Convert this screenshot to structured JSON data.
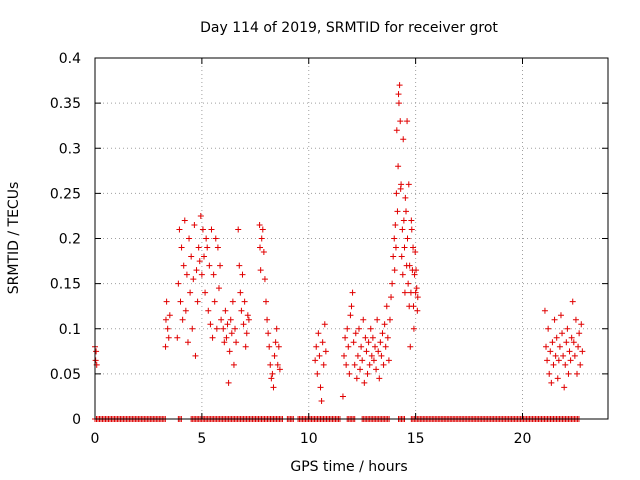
{
  "chart_data": {
    "type": "scatter",
    "title": "Day 114 of 2019, SRMTID for receiver grot",
    "xlabel": "GPS time / hours",
    "ylabel": "SRMTID / TECUs",
    "xlim": [
      0,
      24
    ],
    "ylim": [
      0,
      0.4
    ],
    "xticks": [
      0,
      5,
      10,
      15,
      20
    ],
    "xtick_labels": [
      "0",
      "5",
      "10",
      "15",
      "20"
    ],
    "yticks": [
      0,
      0.05,
      0.1,
      0.15,
      0.2,
      0.25,
      0.3,
      0.35,
      0.4
    ],
    "ytick_labels": [
      "0",
      "0.05",
      "0.1",
      "0.15",
      "0.2",
      "0.25",
      "0.3",
      "0.35",
      "0.4"
    ],
    "grid": true,
    "marker": "+",
    "color": "#e00000",
    "series": [
      {
        "points": [
          [
            0.0,
            0.08
          ],
          [
            0.03,
            0.065
          ],
          [
            0.05,
            0.075
          ],
          [
            0.08,
            0.06
          ],
          [
            3.3,
            0.08
          ],
          [
            3.32,
            0.11
          ],
          [
            3.35,
            0.13
          ],
          [
            3.4,
            0.1
          ],
          [
            3.45,
            0.09
          ],
          [
            3.5,
            0.115
          ],
          [
            3.85,
            0.09
          ],
          [
            3.9,
            0.15
          ],
          [
            3.95,
            0.21
          ],
          [
            4.0,
            0.13
          ],
          [
            4.05,
            0.19
          ],
          [
            4.1,
            0.11
          ],
          [
            4.15,
            0.17
          ],
          [
            4.2,
            0.22
          ],
          [
            4.25,
            0.12
          ],
          [
            4.3,
            0.16
          ],
          [
            4.35,
            0.085
          ],
          [
            4.4,
            0.2
          ],
          [
            4.45,
            0.14
          ],
          [
            4.5,
            0.18
          ],
          [
            4.55,
            0.1
          ],
          [
            4.6,
            0.155
          ],
          [
            4.65,
            0.215
          ],
          [
            4.7,
            0.07
          ],
          [
            4.75,
            0.165
          ],
          [
            4.8,
            0.13
          ],
          [
            4.85,
            0.19
          ],
          [
            4.9,
            0.175
          ],
          [
            4.95,
            0.225
          ],
          [
            5.0,
            0.16
          ],
          [
            5.05,
            0.21
          ],
          [
            5.1,
            0.18
          ],
          [
            5.15,
            0.14
          ],
          [
            5.2,
            0.2
          ],
          [
            5.25,
            0.19
          ],
          [
            5.3,
            0.12
          ],
          [
            5.35,
            0.17
          ],
          [
            5.4,
            0.105
          ],
          [
            5.45,
            0.21
          ],
          [
            5.5,
            0.09
          ],
          [
            5.55,
            0.16
          ],
          [
            5.6,
            0.13
          ],
          [
            5.65,
            0.2
          ],
          [
            5.7,
            0.1
          ],
          [
            5.75,
            0.19
          ],
          [
            5.8,
            0.145
          ],
          [
            5.85,
            0.17
          ],
          [
            5.9,
            0.11
          ],
          [
            6.0,
            0.1
          ],
          [
            6.05,
            0.085
          ],
          [
            6.1,
            0.12
          ],
          [
            6.15,
            0.09
          ],
          [
            6.2,
            0.105
          ],
          [
            6.25,
            0.04
          ],
          [
            6.3,
            0.075
          ],
          [
            6.35,
            0.11
          ],
          [
            6.4,
            0.095
          ],
          [
            6.45,
            0.13
          ],
          [
            6.5,
            0.06
          ],
          [
            6.55,
            0.1
          ],
          [
            6.6,
            0.085
          ],
          [
            6.7,
            0.21
          ],
          [
            6.75,
            0.17
          ],
          [
            6.8,
            0.14
          ],
          [
            6.85,
            0.12
          ],
          [
            6.9,
            0.16
          ],
          [
            6.95,
            0.105
          ],
          [
            7.0,
            0.13
          ],
          [
            7.05,
            0.08
          ],
          [
            7.1,
            0.095
          ],
          [
            7.15,
            0.115
          ],
          [
            7.2,
            0.11
          ],
          [
            7.7,
            0.215
          ],
          [
            7.72,
            0.19
          ],
          [
            7.75,
            0.165
          ],
          [
            7.8,
            0.2
          ],
          [
            7.85,
            0.21
          ],
          [
            7.9,
            0.185
          ],
          [
            7.95,
            0.155
          ],
          [
            8.0,
            0.13
          ],
          [
            8.05,
            0.11
          ],
          [
            8.1,
            0.095
          ],
          [
            8.15,
            0.08
          ],
          [
            8.2,
            0.06
          ],
          [
            8.25,
            0.045
          ],
          [
            8.3,
            0.05
          ],
          [
            8.35,
            0.035
          ],
          [
            8.4,
            0.07
          ],
          [
            8.45,
            0.085
          ],
          [
            8.5,
            0.1
          ],
          [
            8.55,
            0.06
          ],
          [
            8.6,
            0.08
          ],
          [
            8.65,
            0.055
          ],
          [
            10.3,
            0.065
          ],
          [
            10.35,
            0.08
          ],
          [
            10.4,
            0.05
          ],
          [
            10.45,
            0.095
          ],
          [
            10.5,
            0.07
          ],
          [
            10.55,
            0.035
          ],
          [
            10.6,
            0.02
          ],
          [
            10.65,
            0.085
          ],
          [
            10.7,
            0.06
          ],
          [
            10.75,
            0.105
          ],
          [
            10.8,
            0.075
          ],
          [
            11.6,
            0.025
          ],
          [
            11.65,
            0.07
          ],
          [
            11.7,
            0.09
          ],
          [
            11.75,
            0.06
          ],
          [
            11.8,
            0.1
          ],
          [
            11.85,
            0.08
          ],
          [
            11.9,
            0.05
          ],
          [
            11.95,
            0.115
          ],
          [
            12.0,
            0.125
          ],
          [
            12.05,
            0.14
          ],
          [
            12.1,
            0.085
          ],
          [
            12.15,
            0.06
          ],
          [
            12.2,
            0.095
          ],
          [
            12.25,
            0.045
          ],
          [
            12.3,
            0.07
          ],
          [
            12.35,
            0.1
          ],
          [
            12.4,
            0.055
          ],
          [
            12.45,
            0.08
          ],
          [
            12.5,
            0.065
          ],
          [
            12.55,
            0.11
          ],
          [
            12.6,
            0.04
          ],
          [
            12.65,
            0.09
          ],
          [
            12.7,
            0.075
          ],
          [
            12.75,
            0.05
          ],
          [
            12.8,
            0.085
          ],
          [
            12.85,
            0.06
          ],
          [
            12.9,
            0.1
          ],
          [
            12.95,
            0.07
          ],
          [
            13.0,
            0.09
          ],
          [
            13.05,
            0.065
          ],
          [
            13.1,
            0.08
          ],
          [
            13.15,
            0.055
          ],
          [
            13.2,
            0.11
          ],
          [
            13.25,
            0.075
          ],
          [
            13.3,
            0.045
          ],
          [
            13.35,
            0.085
          ],
          [
            13.4,
            0.07
          ],
          [
            13.45,
            0.095
          ],
          [
            13.5,
            0.06
          ],
          [
            13.55,
            0.105
          ],
          [
            13.6,
            0.08
          ],
          [
            13.65,
            0.125
          ],
          [
            13.7,
            0.09
          ],
          [
            13.75,
            0.065
          ],
          [
            13.8,
            0.11
          ],
          [
            13.85,
            0.135
          ],
          [
            13.9,
            0.15
          ],
          [
            13.95,
            0.18
          ],
          [
            14.0,
            0.2
          ],
          [
            14.02,
            0.165
          ],
          [
            14.05,
            0.215
          ],
          [
            14.08,
            0.19
          ],
          [
            14.1,
            0.25
          ],
          [
            14.12,
            0.32
          ],
          [
            14.15,
            0.23
          ],
          [
            14.18,
            0.28
          ],
          [
            14.2,
            0.36
          ],
          [
            14.22,
            0.35
          ],
          [
            14.25,
            0.37
          ],
          [
            14.28,
            0.33
          ],
          [
            14.3,
            0.255
          ],
          [
            14.32,
            0.26
          ],
          [
            14.35,
            0.18
          ],
          [
            14.38,
            0.21
          ],
          [
            14.4,
            0.16
          ],
          [
            14.42,
            0.31
          ],
          [
            14.45,
            0.22
          ],
          [
            14.48,
            0.19
          ],
          [
            14.5,
            0.14
          ],
          [
            14.52,
            0.245
          ],
          [
            14.55,
            0.23
          ],
          [
            14.58,
            0.17
          ],
          [
            14.6,
            0.33
          ],
          [
            14.62,
            0.2
          ],
          [
            14.65,
            0.15
          ],
          [
            14.68,
            0.26
          ],
          [
            14.7,
            0.125
          ],
          [
            14.72,
            0.17
          ],
          [
            14.75,
            0.08
          ],
          [
            14.78,
            0.14
          ],
          [
            14.8,
            0.22
          ],
          [
            14.82,
            0.21
          ],
          [
            14.85,
            0.165
          ],
          [
            14.88,
            0.19
          ],
          [
            14.9,
            0.125
          ],
          [
            14.92,
            0.1
          ],
          [
            14.95,
            0.16
          ],
          [
            14.98,
            0.185
          ],
          [
            15.0,
            0.14
          ],
          [
            15.02,
            0.165
          ],
          [
            15.05,
            0.145
          ],
          [
            15.08,
            0.12
          ],
          [
            15.1,
            0.135
          ],
          [
            21.05,
            0.12
          ],
          [
            21.1,
            0.08
          ],
          [
            21.15,
            0.065
          ],
          [
            21.2,
            0.1
          ],
          [
            21.25,
            0.05
          ],
          [
            21.3,
            0.075
          ],
          [
            21.35,
            0.04
          ],
          [
            21.4,
            0.085
          ],
          [
            21.45,
            0.06
          ],
          [
            21.5,
            0.11
          ],
          [
            21.55,
            0.07
          ],
          [
            21.6,
            0.09
          ],
          [
            21.65,
            0.045
          ],
          [
            21.7,
            0.065
          ],
          [
            21.75,
            0.08
          ],
          [
            21.8,
            0.115
          ],
          [
            21.85,
            0.095
          ],
          [
            21.9,
            0.07
          ],
          [
            21.95,
            0.035
          ],
          [
            22.0,
            0.06
          ],
          [
            22.05,
            0.085
          ],
          [
            22.1,
            0.1
          ],
          [
            22.15,
            0.05
          ],
          [
            22.2,
            0.075
          ],
          [
            22.25,
            0.065
          ],
          [
            22.3,
            0.09
          ],
          [
            22.35,
            0.13
          ],
          [
            22.4,
            0.085
          ],
          [
            22.45,
            0.07
          ],
          [
            22.5,
            0.11
          ],
          [
            22.55,
            0.05
          ],
          [
            22.6,
            0.08
          ],
          [
            22.65,
            0.095
          ],
          [
            22.7,
            0.06
          ],
          [
            22.75,
            0.105
          ],
          [
            22.8,
            0.075
          ]
        ],
        "zero_runs": [
          [
            0.0,
            3.3
          ],
          [
            3.9,
            4.1
          ],
          [
            4.5,
            8.8
          ],
          [
            9.0,
            9.3
          ],
          [
            9.5,
            11.5
          ],
          [
            11.8,
            12.2
          ],
          [
            12.5,
            13.8
          ],
          [
            14.2,
            14.5
          ],
          [
            14.8,
            22.7
          ]
        ]
      }
    ]
  }
}
